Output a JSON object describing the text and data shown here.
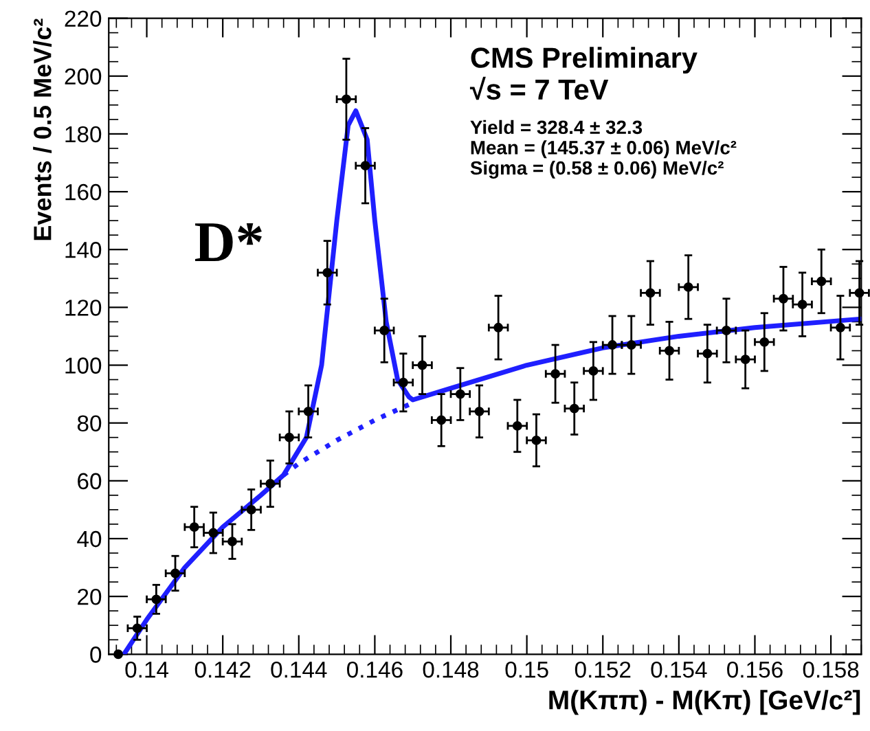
{
  "chart_data": {
    "type": "scatter",
    "xlabel": "M(Kππ) - M(Kπ) [GeV/c²]",
    "ylabel": "Events / 0.5 MeV/c²",
    "annotations": [
      "CMS Preliminary",
      "√s = 7 TeV",
      "Yield = 328.4 ± 32.3",
      "Mean = (145.37 ± 0.06) MeV/c²",
      "Sigma = (0.58 ± 0.06) MeV/c²",
      "D*"
    ],
    "xlim": [
      0.139,
      0.1588
    ],
    "xticks": [
      {
        "value": 0.14,
        "label": "0.14"
      },
      {
        "value": 0.142,
        "label": "0.142"
      },
      {
        "value": 0.144,
        "label": "0.144"
      },
      {
        "value": 0.146,
        "label": "0.146"
      },
      {
        "value": 0.148,
        "label": "0.148"
      },
      {
        "value": 0.15,
        "label": "0.15"
      },
      {
        "value": 0.152,
        "label": "0.152"
      },
      {
        "value": 0.154,
        "label": "0.154"
      },
      {
        "value": 0.156,
        "label": "0.156"
      },
      {
        "value": 0.158,
        "label": "0.158"
      }
    ],
    "ylim": [
      0,
      220
    ],
    "yticks": [
      0,
      20,
      40,
      60,
      80,
      100,
      120,
      140,
      160,
      180,
      200,
      220
    ],
    "grid": false,
    "legend": false,
    "series": [
      {
        "color": "#000000",
        "marker": "circle",
        "x": [
          0.13925,
          0.13975,
          0.14025,
          0.14075,
          0.14125,
          0.14175,
          0.14225,
          0.14275,
          0.14325,
          0.14375,
          0.14425,
          0.14475,
          0.14525,
          0.14575,
          0.14625,
          0.14675,
          0.14725,
          0.14775,
          0.14825,
          0.14875,
          0.14925,
          0.14975,
          0.15025,
          0.15075,
          0.15125,
          0.15175,
          0.15225,
          0.15275,
          0.15325,
          0.15375,
          0.15425,
          0.15475,
          0.15525,
          0.15575,
          0.15625,
          0.15675,
          0.15725,
          0.15775,
          0.15825,
          0.15875
        ],
        "values": [
          0,
          9,
          19,
          28,
          44,
          42,
          39,
          50,
          59,
          75,
          84,
          132,
          192,
          169,
          112,
          94,
          100,
          81,
          90,
          84,
          113,
          79,
          74,
          97,
          85,
          98,
          107,
          107,
          125,
          105,
          127,
          104,
          112,
          102,
          108,
          123,
          121,
          129,
          113,
          125
        ],
        "xerrors": [
          null,
          0.00025,
          0.00025,
          0.00025,
          0.00025,
          0.00025,
          0.00025,
          0.00025,
          0.00025,
          0.00025,
          0.00025,
          0.00025,
          0.00025,
          0.00025,
          0.00025,
          0.00025,
          0.00025,
          0.00025,
          0.00025,
          0.00025,
          0.00025,
          0.00025,
          0.00025,
          0.00025,
          0.00025,
          0.00025,
          0.00025,
          0.00025,
          0.00025,
          0.00025,
          0.00025,
          0.00025,
          0.00025,
          0.00025,
          0.00025,
          0.00025,
          0.00025,
          0.00025,
          0.00025,
          0.00025
        ],
        "errors": [
          null,
          4,
          5,
          6,
          7,
          7,
          6,
          7,
          8,
          9,
          9,
          11,
          14,
          13,
          11,
          10,
          10,
          9,
          9,
          9,
          11,
          9,
          9,
          10,
          9,
          10,
          10,
          10,
          11,
          10,
          11,
          10,
          11,
          10,
          10,
          11,
          11,
          11,
          11,
          11
        ]
      },
      {
        "type": "line",
        "color": "#1f1fff",
        "line_style": "solid",
        "x": [
          0.1394,
          0.14,
          0.141,
          0.142,
          0.143,
          0.1436,
          0.1442,
          0.1446,
          0.145,
          0.1453,
          0.1455,
          0.1458,
          0.146,
          0.1463,
          0.1466,
          0.1469,
          0.147,
          0.148,
          0.15,
          0.152,
          0.154,
          0.156,
          0.1588
        ],
        "values": [
          0,
          12,
          30,
          44,
          55,
          62,
          75,
          100,
          150,
          183,
          188,
          178,
          150,
          115,
          95,
          89,
          88,
          92,
          100,
          106,
          110,
          113,
          116
        ]
      },
      {
        "type": "line",
        "color": "#1f1fff",
        "line_style": "dotted",
        "x": [
          0.1436,
          0.144,
          0.145,
          0.146,
          0.147
        ],
        "values": [
          62,
          66,
          74,
          81,
          87
        ]
      }
    ]
  }
}
